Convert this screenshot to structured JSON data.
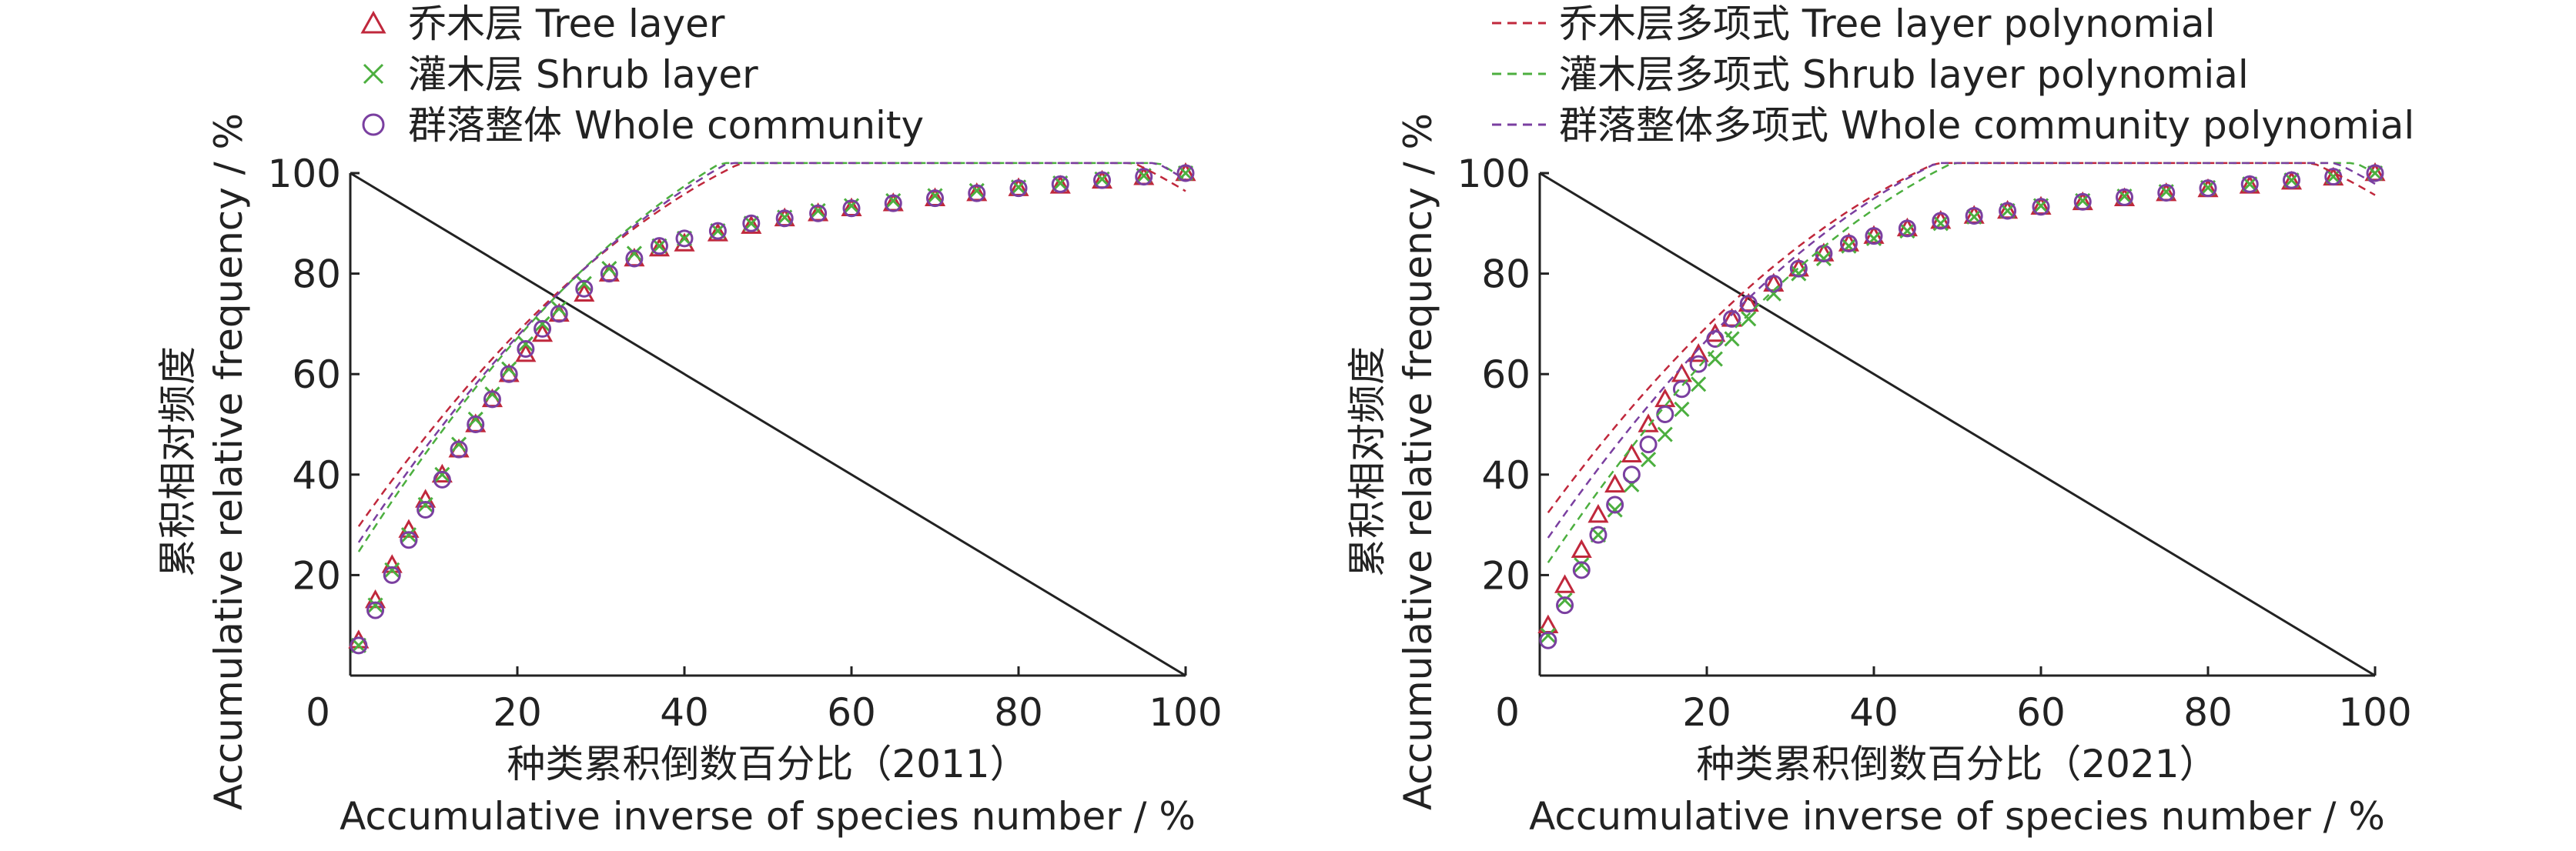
{
  "legend": {
    "markers": [
      {
        "label": "乔木层 Tree layer",
        "marker": "triangle",
        "color": "#c0283c"
      },
      {
        "label": "灌木层 Shrub layer",
        "marker": "cross",
        "color": "#4caf3f"
      },
      {
        "label": "群落整体 Whole community",
        "marker": "circle",
        "color": "#7a3fa0"
      }
    ],
    "lines": [
      {
        "label": "乔木层多项式 Tree layer polynomial",
        "color": "#c0283c"
      },
      {
        "label": "灌木层多项式 Shrub layer polynomial",
        "color": "#4caf3f"
      },
      {
        "label": "群落整体多项式 Whole community polynomial",
        "color": "#7a3fa0"
      }
    ]
  },
  "chart_data": [
    {
      "type": "scatter",
      "ylabel_zh": "累积相对频度",
      "ylabel_en": "Accumulative relative frequency / %",
      "xlabel_zh": "种类累积倒数百分比（2011）",
      "xlabel_en": "Accumulative inverse of species number / %",
      "xlim": [
        0,
        100
      ],
      "ylim": [
        0,
        100
      ],
      "x_ticks": [
        0,
        20,
        40,
        60,
        80,
        100
      ],
      "y_ticks": [
        20,
        40,
        60,
        80,
        100
      ],
      "reference_line": {
        "from": [
          0,
          100
        ],
        "to": [
          100,
          0
        ],
        "color": "#222222"
      },
      "series": [
        {
          "name": "乔木层 Tree layer",
          "marker": "triangle",
          "color": "#c0283c",
          "x": [
            1,
            3,
            5,
            7,
            9,
            11,
            13,
            15,
            17,
            19,
            21,
            23,
            25,
            28,
            31,
            34,
            37,
            40,
            44,
            48,
            52,
            56,
            60,
            65,
            70,
            75,
            80,
            85,
            90,
            95,
            100
          ],
          "y": [
            7,
            15,
            22,
            29,
            35,
            40,
            45,
            50,
            55,
            60,
            64,
            68,
            72,
            76,
            80,
            83,
            85,
            86,
            88,
            89.5,
            91,
            92,
            93,
            94,
            95,
            96,
            97,
            97.5,
            98.5,
            99.2,
            100
          ]
        },
        {
          "name": "灌木层 Shrub layer",
          "marker": "cross",
          "color": "#4caf3f",
          "x": [
            1,
            3,
            5,
            7,
            9,
            11,
            13,
            15,
            17,
            19,
            21,
            23,
            25,
            28,
            31,
            34,
            37,
            40,
            44,
            48,
            52,
            56,
            60,
            65,
            70,
            75,
            80,
            85,
            90,
            95,
            100
          ],
          "y": [
            6,
            14,
            21,
            28,
            34,
            40,
            46,
            51,
            56,
            61,
            66,
            70,
            73,
            78,
            81,
            84,
            85.5,
            87,
            88.5,
            90,
            91.2,
            92.5,
            93.5,
            94.5,
            95.5,
            96.5,
            97.2,
            98,
            98.8,
            99.5,
            100
          ]
        },
        {
          "name": "群落整体 Whole community",
          "marker": "circle",
          "color": "#7a3fa0",
          "x": [
            1,
            3,
            5,
            7,
            9,
            11,
            13,
            15,
            17,
            19,
            21,
            23,
            25,
            28,
            31,
            34,
            37,
            40,
            44,
            48,
            52,
            56,
            60,
            65,
            70,
            75,
            80,
            85,
            90,
            95,
            100
          ],
          "y": [
            6,
            13,
            20,
            27,
            33,
            39,
            45,
            50,
            55,
            60,
            65,
            69,
            72,
            77,
            80,
            83,
            85.5,
            87,
            88.5,
            90,
            91,
            92,
            93,
            94,
            95,
            96,
            97,
            97.8,
            98.6,
            99.3,
            100
          ]
        },
        {
          "name": "乔木层多项式 Tree layer polynomial",
          "type": "line",
          "dash": true,
          "color": "#c0283c",
          "coefficients": [
            27.31,
            2.3935,
            -0.017025
          ]
        },
        {
          "name": "灌木层多项式 Shrub layer polynomial",
          "type": "line",
          "dash": true,
          "color": "#4caf3f",
          "coefficients": [
            22.03,
            2.6297,
            -0.018633
          ]
        },
        {
          "name": "群落整体多项式 Whole community polynomial",
          "type": "line",
          "dash": true,
          "color": "#7a3fa0",
          "coefficients": [
            24.0,
            2.5328,
            -0.017861
          ]
        }
      ]
    },
    {
      "type": "scatter",
      "ylabel_zh": "累积相对频度",
      "ylabel_en": "Accumulative relative frequency / %",
      "xlabel_zh": "种类累积倒数百分比（2021）",
      "xlabel_en": "Accumulative inverse of species number / %",
      "xlim": [
        0,
        100
      ],
      "ylim": [
        0,
        100
      ],
      "x_ticks": [
        0,
        20,
        40,
        60,
        80,
        100
      ],
      "y_ticks": [
        20,
        40,
        60,
        80,
        100
      ],
      "reference_line": {
        "from": [
          0,
          100
        ],
        "to": [
          100,
          0
        ],
        "color": "#222222"
      },
      "series": [
        {
          "name": "乔木层 Tree layer",
          "marker": "triangle",
          "color": "#c0283c",
          "x": [
            1,
            3,
            5,
            7,
            9,
            11,
            13,
            15,
            17,
            19,
            21,
            23,
            25,
            28,
            31,
            34,
            37,
            40,
            44,
            48,
            52,
            56,
            60,
            65,
            70,
            75,
            80,
            85,
            90,
            95,
            100
          ],
          "y": [
            10,
            18,
            25,
            32,
            38,
            44,
            50,
            55,
            60,
            64,
            68,
            71,
            74,
            78,
            81,
            84,
            86,
            87.5,
            89,
            90.5,
            91.5,
            92.5,
            93.3,
            94.2,
            95,
            96,
            96.8,
            97.5,
            98.3,
            99.1,
            100
          ]
        },
        {
          "name": "灌木层 Shrub layer",
          "marker": "cross",
          "color": "#4caf3f",
          "x": [
            1,
            3,
            5,
            7,
            9,
            11,
            13,
            15,
            17,
            19,
            21,
            23,
            25,
            28,
            31,
            34,
            37,
            40,
            44,
            48,
            52,
            56,
            60,
            65,
            70,
            75,
            80,
            85,
            90,
            95,
            100
          ],
          "y": [
            8,
            15,
            22,
            28,
            33,
            38,
            43,
            48,
            53,
            58,
            63,
            67,
            71,
            76,
            80,
            83,
            85.5,
            87,
            88.5,
            90,
            91.3,
            92.5,
            93.5,
            94.5,
            95.4,
            96.3,
            97.1,
            97.8,
            98.6,
            99.3,
            100
          ]
        },
        {
          "name": "群落整体 Whole community",
          "marker": "circle",
          "color": "#7a3fa0",
          "x": [
            1,
            3,
            5,
            7,
            9,
            11,
            13,
            15,
            17,
            19,
            21,
            23,
            25,
            28,
            31,
            34,
            37,
            40,
            44,
            48,
            52,
            56,
            60,
            65,
            70,
            75,
            80,
            85,
            90,
            95,
            100
          ],
          "y": [
            7,
            14,
            21,
            28,
            34,
            40,
            46,
            52,
            57,
            62,
            67,
            71,
            74,
            78,
            81,
            84,
            86,
            87.5,
            89,
            90.5,
            91.5,
            92.5,
            93.3,
            94.3,
            95.2,
            96.1,
            97,
            97.8,
            98.6,
            99.3,
            100
          ]
        },
        {
          "name": "乔木层多项式 Tree layer polynomial",
          "type": "line",
          "dash": true,
          "color": "#c0283c",
          "coefficients": [
            30.16,
            2.2895,
            -0.016349
          ]
        },
        {
          "name": "灌木层多项式 Shrub layer polynomial",
          "type": "line",
          "dash": true,
          "color": "#4caf3f",
          "coefficients": [
            20.0,
            2.5,
            -0.017
          ]
        },
        {
          "name": "群落整体多项式 Whole community polynomial",
          "type": "line",
          "dash": true,
          "color": "#7a3fa0",
          "coefficients": [
            25.0,
            2.4286,
            -0.017
          ]
        }
      ]
    }
  ]
}
